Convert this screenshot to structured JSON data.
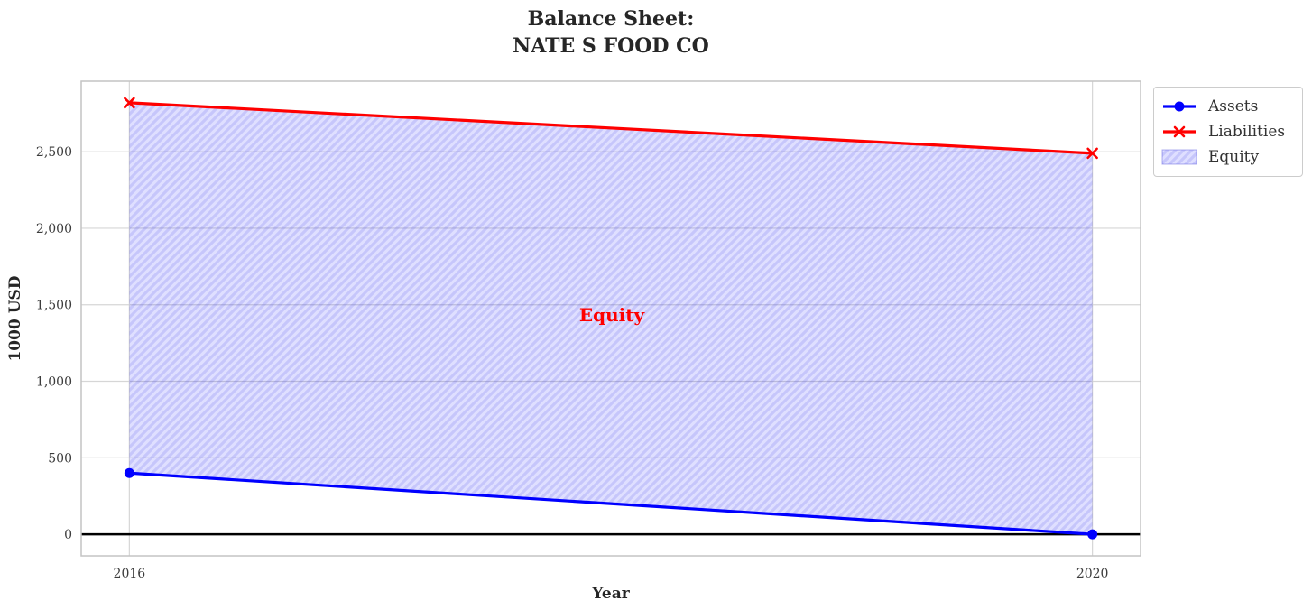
{
  "title": "Balance Sheet:\nNATE S FOOD CO",
  "annotation": {
    "label": "Equity",
    "color": "#ff0000"
  },
  "legend": {
    "items": [
      {
        "label": "Assets"
      },
      {
        "label": "Liabilities"
      },
      {
        "label": "Equity"
      }
    ]
  },
  "chart_data": {
    "type": "line",
    "title": "Balance Sheet: NATE S FOOD CO",
    "x": [
      2016,
      2020
    ],
    "series": [
      {
        "name": "Assets",
        "color": "#0000ff",
        "marker": "circle",
        "values": [
          400,
          0
        ]
      },
      {
        "name": "Liabilities",
        "color": "#ff0000",
        "marker": "x",
        "values": [
          2820,
          2490
        ]
      }
    ],
    "area": {
      "name": "Equity",
      "between": [
        "Assets",
        "Liabilities"
      ],
      "fill": "rgba(0,0,255,0.125)",
      "hatch": "/",
      "hatch_color": "rgba(40,40,230,0.14)",
      "edge_color": "rgba(80,80,220,0.45)"
    },
    "xlabel": "Year",
    "ylabel": "1000 USD",
    "xticks": [
      2016,
      2020
    ],
    "xtick_labels": [
      "2016",
      "2020"
    ],
    "yticks": [
      0,
      500,
      1000,
      1500,
      2000,
      2500
    ],
    "ytick_labels": [
      "0",
      "500",
      "1,000",
      "1,500",
      "2,000",
      "2,500"
    ],
    "xlim": [
      2015.8,
      2020.2
    ],
    "ylim": [
      -141,
      2961
    ],
    "zero_line": true,
    "zero_line_color": "#000000",
    "grid": true,
    "grid_color": "#d6d6d6",
    "spine_color": "#c4c4c4",
    "legend_position": "upper-right-outside"
  }
}
